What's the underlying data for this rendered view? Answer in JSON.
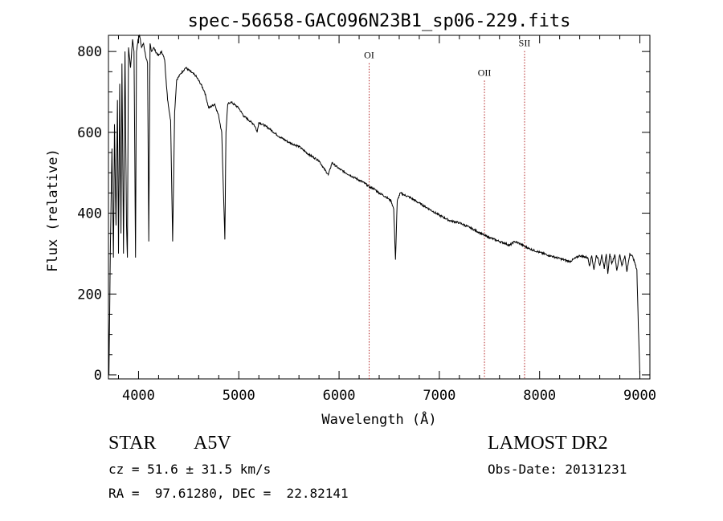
{
  "chart_data": {
    "type": "line",
    "title": "spec-56658-GAC096N23B1_sp06-229.fits",
    "xlabel": "Wavelength (Å)",
    "ylabel": "Flux (relative)",
    "xlim": [
      3700,
      9100
    ],
    "ylim": [
      -10,
      840
    ],
    "x_ticks": [
      4000,
      5000,
      6000,
      7000,
      8000,
      9000
    ],
    "x_ticklabels": [
      "4000",
      "5000",
      "6000",
      "7000",
      "8000",
      "9000"
    ],
    "y_ticks": [
      0,
      200,
      400,
      600,
      800
    ],
    "y_ticklabels": [
      "0",
      "200",
      "400",
      "600",
      "800"
    ],
    "grid": false,
    "series": [
      {
        "x": [
          3700,
          3705,
          3720,
          3735,
          3750,
          3760,
          3775,
          3790,
          3800,
          3812,
          3825,
          3835,
          3850,
          3865,
          3880,
          3889,
          3900,
          3920,
          3940,
          3955,
          3970,
          3980,
          3995,
          4010,
          4030,
          4050,
          4070,
          4090,
          4102,
          4115,
          4130,
          4150,
          4170,
          4200,
          4230,
          4260,
          4290,
          4320,
          4340,
          4360,
          4380,
          4420,
          4470,
          4520,
          4570,
          4620,
          4660,
          4700,
          4760,
          4800,
          4830,
          4850,
          4861,
          4872,
          4890,
          4920,
          4960,
          5000,
          5050,
          5100,
          5150,
          5170,
          5183,
          5200,
          5270,
          5300,
          5400,
          5500,
          5600,
          5700,
          5800,
          5850,
          5893,
          5930,
          6000,
          6100,
          6200,
          6250,
          6280,
          6300,
          6350,
          6400,
          6470,
          6520,
          6545,
          6563,
          6580,
          6610,
          6650,
          6700,
          6800,
          6900,
          7000,
          7100,
          7200,
          7300,
          7400,
          7450,
          7500,
          7600,
          7660,
          7700,
          7750,
          7800,
          7850,
          7900,
          8000,
          8100,
          8200,
          8300,
          8400,
          8450,
          8480,
          8498,
          8520,
          8542,
          8565,
          8580,
          8600,
          8620,
          8645,
          8665,
          8680,
          8700,
          8720,
          8750,
          8770,
          8800,
          8820,
          8850,
          8870,
          8900,
          8930,
          8970,
          8985,
          9000
        ],
        "y": [
          140,
          0,
          330,
          560,
          290,
          620,
          370,
          680,
          300,
          720,
          350,
          770,
          300,
          800,
          370,
          290,
          810,
          760,
          830,
          800,
          290,
          800,
          830,
          840,
          810,
          820,
          790,
          770,
          330,
          820,
          800,
          810,
          800,
          790,
          800,
          780,
          680,
          630,
          330,
          650,
          730,
          745,
          760,
          750,
          740,
          720,
          700,
          660,
          670,
          640,
          600,
          430,
          335,
          600,
          670,
          675,
          668,
          660,
          640,
          630,
          620,
          610,
          600,
          625,
          615,
          610,
          590,
          575,
          565,
          545,
          530,
          510,
          495,
          525,
          510,
          495,
          482,
          475,
          470,
          465,
          460,
          450,
          440,
          430,
          410,
          285,
          430,
          450,
          445,
          440,
          425,
          410,
          395,
          382,
          376,
          365,
          352,
          345,
          340,
          330,
          325,
          320,
          330,
          325,
          318,
          312,
          303,
          295,
          288,
          280,
          295,
          292,
          290,
          270,
          295,
          260,
          295,
          290,
          270,
          298,
          262,
          299,
          250,
          300,
          275,
          298,
          258,
          298,
          270,
          295,
          255,
          300,
          292,
          260,
          120,
          0
        ]
      }
    ],
    "annotations": [
      {
        "label": "OI",
        "x": 6300,
        "label_y": 783
      },
      {
        "label": "OII",
        "x": 7450,
        "label_y": 740
      },
      {
        "label": "SII",
        "x": 7850,
        "label_y": 813
      }
    ]
  },
  "info": {
    "object_type": "STAR",
    "spectral_type": "A5V",
    "survey": "LAMOST DR2",
    "cz": "cz = 51.6 ± 31.5 km/s",
    "obs_date": "Obs-Date: 20131231",
    "coords": "RA =  97.61280, DEC =  22.82141"
  },
  "colors": {
    "line": "#000000",
    "marker_line": "#b22222",
    "background": "#ffffff"
  }
}
